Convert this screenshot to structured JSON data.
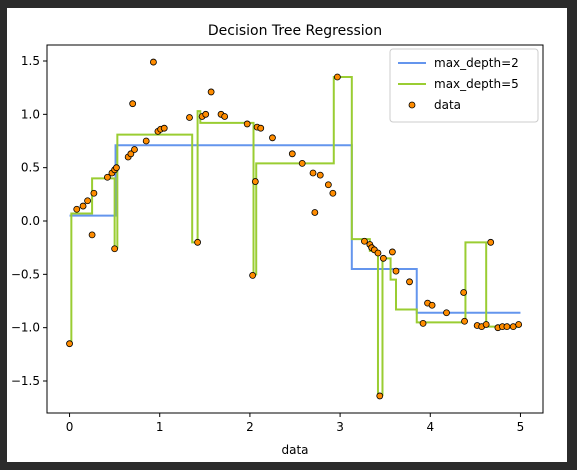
{
  "chart_data": {
    "type": "scatter",
    "title": "Decision Tree Regression",
    "xlabel": "data",
    "ylabel": "",
    "xlim": [
      -0.25,
      5.25
    ],
    "ylim": [
      -1.8,
      1.65
    ],
    "xticks": [
      0,
      1,
      2,
      3,
      4,
      5
    ],
    "xtick_labels": [
      "0",
      "1",
      "2",
      "3",
      "4",
      "5"
    ],
    "yticks": [
      -1.5,
      -1.0,
      -0.5,
      0.0,
      0.5,
      1.0,
      1.5
    ],
    "ytick_labels": [
      "−1.5",
      "−1.0",
      "−0.5",
      "0.0",
      "0.5",
      "1.0",
      "1.5"
    ],
    "grid": false,
    "legend_position": "top-right",
    "series": [
      {
        "name": "max_depth=2",
        "kind": "step",
        "color": "#6495ed",
        "x": [
          0.0,
          0.51,
          0.51,
          3.13,
          3.13,
          3.85,
          3.85,
          5.0
        ],
        "y": [
          0.05,
          0.05,
          0.71,
          0.71,
          -0.45,
          -0.45,
          -0.86,
          -0.86
        ]
      },
      {
        "name": "max_depth=5",
        "kind": "step",
        "color": "#9acd32",
        "x": [
          0.0,
          0.02,
          0.02,
          0.25,
          0.25,
          0.5,
          0.5,
          0.53,
          0.53,
          1.05,
          1.05,
          1.36,
          1.36,
          1.42,
          1.42,
          1.45,
          1.45,
          1.86,
          1.86,
          2.04,
          2.04,
          2.07,
          2.07,
          2.1,
          2.1,
          2.93,
          2.93,
          3.13,
          3.13,
          3.33,
          3.33,
          3.42,
          3.42,
          3.47,
          3.47,
          3.56,
          3.56,
          3.62,
          3.62,
          3.85,
          3.85,
          4.39,
          4.39,
          4.62,
          4.62,
          4.68,
          4.68,
          5.0
        ],
        "y": [
          -1.15,
          -1.15,
          0.07,
          0.07,
          0.4,
          0.4,
          -0.25,
          -0.25,
          0.81,
          0.81,
          0.81,
          0.81,
          -0.2,
          -0.2,
          1.03,
          1.03,
          0.92,
          0.92,
          0.92,
          0.92,
          -0.5,
          -0.5,
          0.54,
          0.54,
          0.54,
          0.54,
          1.35,
          1.35,
          -0.17,
          -0.17,
          -0.28,
          -0.28,
          -1.63,
          -1.63,
          -0.35,
          -0.35,
          -0.55,
          -0.55,
          -0.83,
          -0.83,
          -0.95,
          -0.95,
          -0.2,
          -0.2,
          -0.99,
          -0.99,
          -0.99,
          -0.99
        ]
      },
      {
        "name": "data",
        "kind": "scatter",
        "color": "#ff8c00",
        "x": [
          0.0,
          0.08,
          0.15,
          0.2,
          0.25,
          0.27,
          0.42,
          0.47,
          0.5,
          0.5,
          0.52,
          0.65,
          0.68,
          0.7,
          0.72,
          0.85,
          0.93,
          0.98,
          1.01,
          1.05,
          1.33,
          1.42,
          1.47,
          1.51,
          1.57,
          1.68,
          1.72,
          1.97,
          2.03,
          2.06,
          2.08,
          2.12,
          2.25,
          2.47,
          2.58,
          2.7,
          2.72,
          2.78,
          2.87,
          2.92,
          2.97,
          3.27,
          3.33,
          3.35,
          3.38,
          3.42,
          3.44,
          3.48,
          3.58,
          3.62,
          3.77,
          3.92,
          3.97,
          4.02,
          4.18,
          4.37,
          4.38,
          4.52,
          4.57,
          4.62,
          4.67,
          4.75,
          4.8,
          4.85,
          4.92,
          4.98
        ],
        "y": [
          -1.15,
          0.11,
          0.14,
          0.19,
          -0.13,
          0.26,
          0.41,
          0.45,
          0.48,
          -0.26,
          0.5,
          0.6,
          0.63,
          1.1,
          0.67,
          0.75,
          1.49,
          0.84,
          0.86,
          0.87,
          0.97,
          -0.2,
          0.98,
          1.0,
          1.21,
          1.0,
          0.98,
          0.91,
          -0.51,
          0.37,
          0.88,
          0.87,
          0.78,
          0.63,
          0.54,
          0.45,
          0.08,
          0.43,
          0.34,
          0.26,
          1.35,
          -0.19,
          -0.22,
          -0.25,
          -0.27,
          -0.3,
          -1.64,
          -0.35,
          -0.29,
          -0.47,
          -0.57,
          -0.96,
          -0.77,
          -0.79,
          -0.86,
          -0.67,
          -0.94,
          -0.98,
          -0.99,
          -0.97,
          -0.2,
          -1.0,
          -0.99,
          -0.99,
          -0.99,
          -0.97
        ]
      }
    ]
  }
}
